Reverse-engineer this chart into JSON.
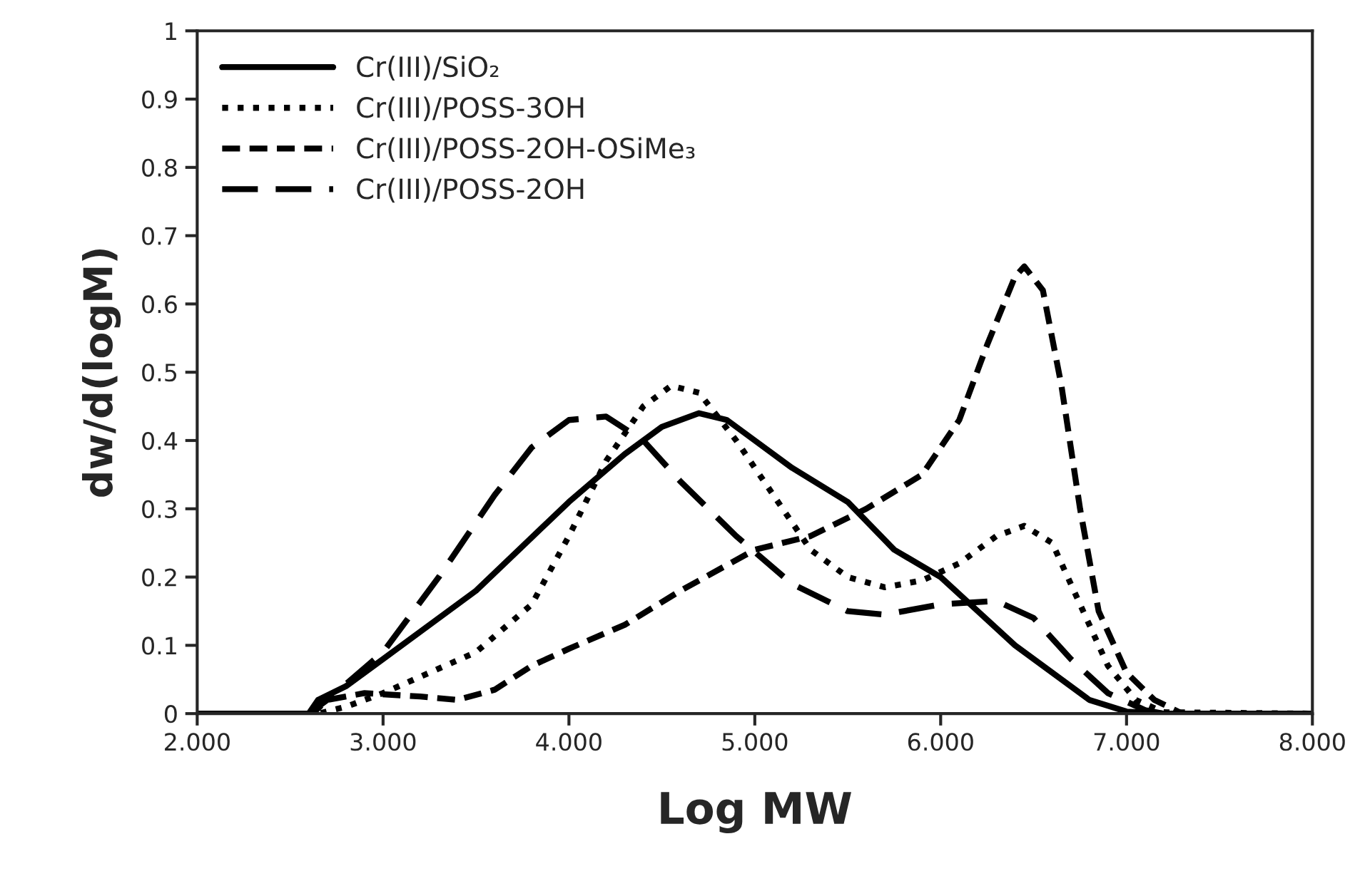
{
  "chart_data": {
    "type": "line",
    "xlabel": "Log MW",
    "ylabel": "dw/d(logM)",
    "xlim": [
      2,
      8
    ],
    "xticks": [
      {
        "value": 2,
        "label": "2.000"
      },
      {
        "value": 3,
        "label": "3.000"
      },
      {
        "value": 4,
        "label": "4.000"
      },
      {
        "value": 5,
        "label": "5.000"
      },
      {
        "value": 6,
        "label": "6.000"
      },
      {
        "value": 7,
        "label": "7.000"
      },
      {
        "value": 8,
        "label": "8.000"
      }
    ],
    "ylim": [
      0,
      1
    ],
    "yticks": [
      0,
      0.1,
      0.2,
      0.3,
      0.4,
      0.5,
      0.6,
      0.7,
      0.8,
      0.9,
      1
    ],
    "grid": false,
    "legend": "top left",
    "marker": "none",
    "series": [
      {
        "name": "Cr(III)/SiO₂",
        "color": "#000000",
        "line_style": "solid",
        "x": [
          2.0,
          2.6,
          2.65,
          2.8,
          3.0,
          3.5,
          4.0,
          4.3,
          4.5,
          4.7,
          4.85,
          5.0,
          5.2,
          5.5,
          5.75,
          6.0,
          6.2,
          6.4,
          6.6,
          6.8,
          7.0,
          7.2,
          8.0
        ],
        "values": [
          0,
          0,
          0.02,
          0.04,
          0.08,
          0.18,
          0.31,
          0.38,
          0.42,
          0.44,
          0.43,
          0.4,
          0.36,
          0.31,
          0.24,
          0.2,
          0.15,
          0.1,
          0.06,
          0.02,
          0.003,
          0,
          0
        ]
      },
      {
        "name": "Cr(III)/POSS-3OH",
        "color": "#000000",
        "line_style": "dotted",
        "x": [
          2.0,
          2.65,
          2.8,
          3.0,
          3.5,
          3.8,
          4.0,
          4.2,
          4.4,
          4.55,
          4.7,
          4.9,
          5.1,
          5.3,
          5.5,
          5.7,
          5.9,
          6.1,
          6.3,
          6.45,
          6.6,
          6.75,
          6.9,
          7.05,
          7.2,
          8.0
        ],
        "values": [
          0,
          0,
          0.01,
          0.03,
          0.09,
          0.16,
          0.26,
          0.37,
          0.45,
          0.48,
          0.47,
          0.4,
          0.32,
          0.24,
          0.2,
          0.185,
          0.195,
          0.22,
          0.26,
          0.275,
          0.25,
          0.16,
          0.07,
          0.02,
          0.002,
          0
        ]
      },
      {
        "name": "Cr(III)/POSS-2OH-OSiMe₃",
        "color": "#000000",
        "line_style": "dashed",
        "x": [
          2.0,
          2.62,
          2.7,
          2.9,
          3.2,
          3.4,
          3.6,
          3.8,
          4.0,
          4.3,
          4.6,
          5.0,
          5.3,
          5.6,
          5.9,
          6.1,
          6.25,
          6.4,
          6.45,
          6.55,
          6.65,
          6.75,
          6.85,
          7.0,
          7.15,
          7.3,
          8.0
        ],
        "values": [
          0,
          0,
          0.02,
          0.03,
          0.025,
          0.02,
          0.035,
          0.07,
          0.095,
          0.13,
          0.18,
          0.24,
          0.26,
          0.3,
          0.35,
          0.43,
          0.54,
          0.64,
          0.655,
          0.62,
          0.48,
          0.3,
          0.15,
          0.06,
          0.02,
          0,
          0
        ]
      },
      {
        "name": "Cr(III)/POSS-2OH",
        "color": "#000000",
        "line_style": "long dashed",
        "x": [
          2.0,
          2.6,
          2.7,
          3.0,
          3.3,
          3.6,
          3.8,
          4.0,
          4.2,
          4.4,
          4.6,
          4.9,
          5.2,
          5.5,
          5.7,
          6.0,
          6.3,
          6.5,
          6.7,
          6.9,
          7.1,
          7.2,
          8.0
        ],
        "values": [
          0,
          0,
          0.02,
          0.09,
          0.2,
          0.32,
          0.39,
          0.43,
          0.435,
          0.4,
          0.34,
          0.26,
          0.19,
          0.15,
          0.145,
          0.16,
          0.165,
          0.14,
          0.08,
          0.03,
          0.005,
          0,
          0
        ]
      }
    ]
  }
}
